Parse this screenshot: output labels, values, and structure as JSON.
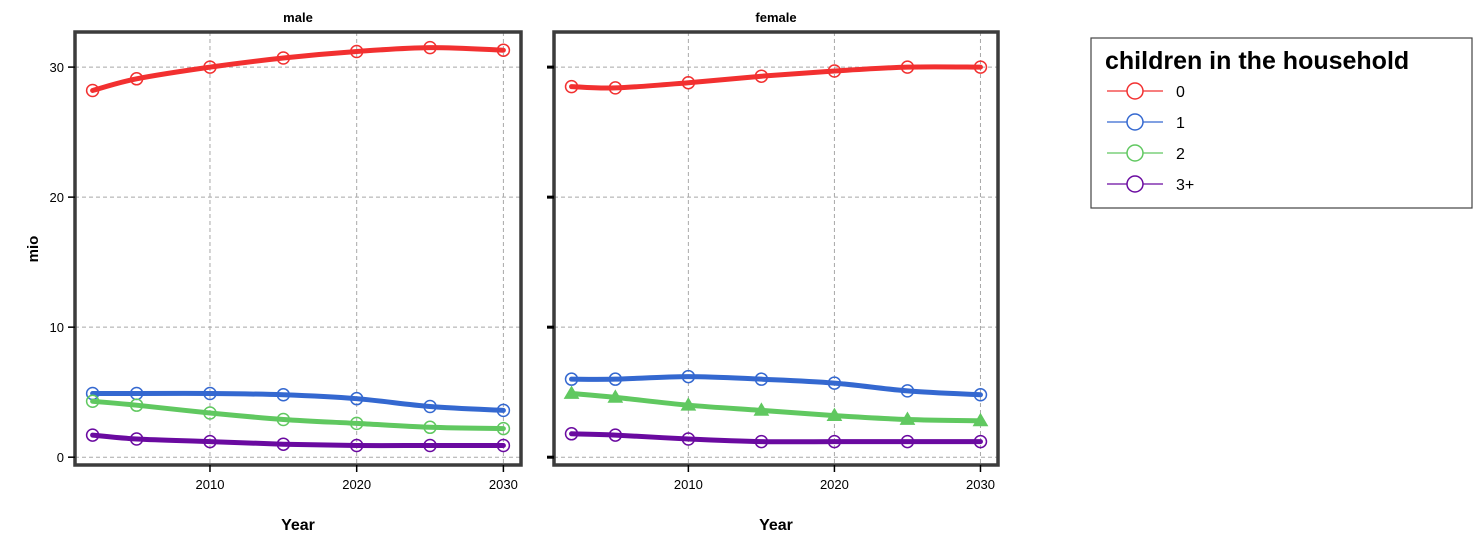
{
  "chart_data": {
    "type": "line",
    "ylabel": "mio",
    "xlabel": "Year",
    "x": [
      2002,
      2005,
      2010,
      2015,
      2020,
      2025,
      2030
    ],
    "xlim": [
      2000.8,
      2031.2
    ],
    "ylim": [
      -0.6,
      32.7
    ],
    "x_ticks": [
      2010,
      2020,
      2030
    ],
    "y_ticks": [
      0,
      10,
      20,
      30
    ],
    "grid": true,
    "legend": {
      "title": "children in the household",
      "placement": "right",
      "entries": [
        "0",
        "1",
        "2",
        "3+"
      ]
    },
    "colors": {
      "0": "#f23030",
      "1": "#3468d0",
      "2": "#60c860",
      "3+": "#6a0aa0"
    },
    "panels": [
      {
        "title": "male",
        "series": [
          {
            "name": "0",
            "values": [
              28.2,
              29.1,
              30.0,
              30.7,
              31.2,
              31.5,
              31.3
            ],
            "marker": "circle"
          },
          {
            "name": "1",
            "values": [
              4.9,
              4.9,
              4.9,
              4.8,
              4.5,
              3.9,
              3.6
            ],
            "marker": "circle"
          },
          {
            "name": "2",
            "values": [
              4.3,
              4.0,
              3.4,
              2.9,
              2.6,
              2.3,
              2.2
            ],
            "marker": "circle"
          },
          {
            "name": "3+",
            "values": [
              1.7,
              1.4,
              1.2,
              1.0,
              0.9,
              0.9,
              0.9
            ],
            "marker": "circle"
          }
        ]
      },
      {
        "title": "female",
        "series": [
          {
            "name": "0",
            "values": [
              28.5,
              28.4,
              28.8,
              29.3,
              29.7,
              30.0,
              30.0
            ],
            "marker": "circle"
          },
          {
            "name": "1",
            "values": [
              6.0,
              6.0,
              6.2,
              6.0,
              5.7,
              5.1,
              4.8
            ],
            "marker": "circle"
          },
          {
            "name": "2",
            "values": [
              4.9,
              4.6,
              4.0,
              3.6,
              3.2,
              2.9,
              2.8
            ],
            "marker": "triangle"
          },
          {
            "name": "3+",
            "values": [
              1.8,
              1.7,
              1.4,
              1.2,
              1.2,
              1.2,
              1.2
            ],
            "marker": "circle"
          }
        ]
      }
    ]
  }
}
